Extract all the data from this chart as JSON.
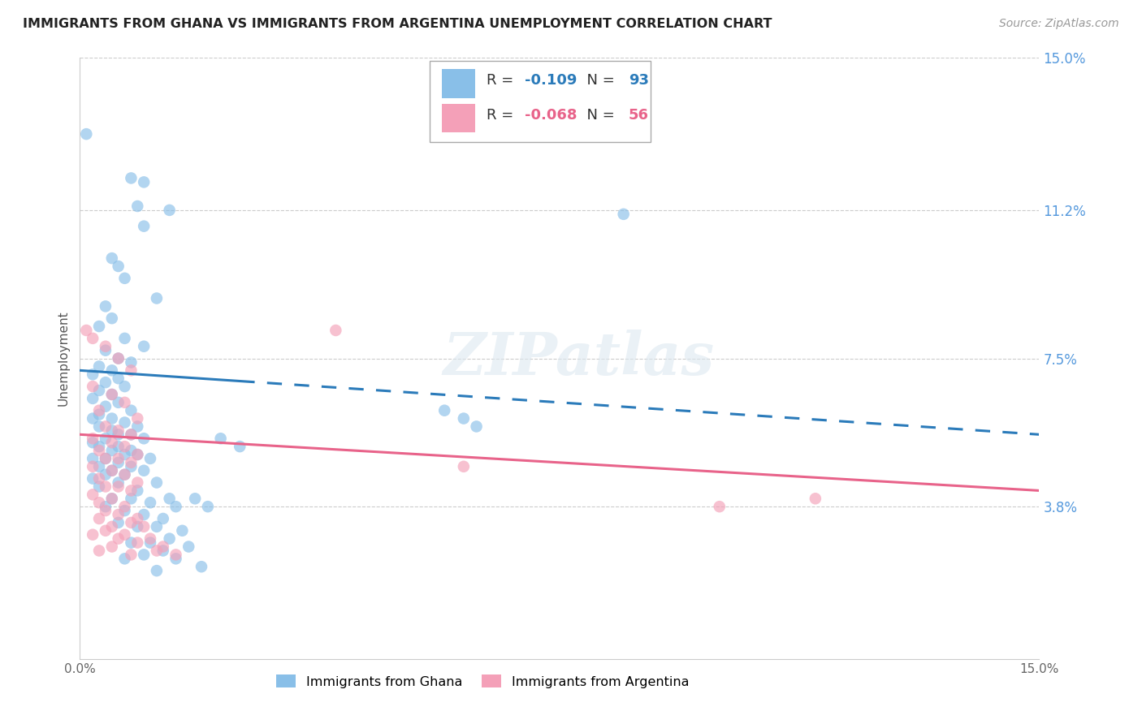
{
  "title": "IMMIGRANTS FROM GHANA VS IMMIGRANTS FROM ARGENTINA UNEMPLOYMENT CORRELATION CHART",
  "source": "Source: ZipAtlas.com",
  "ylabel": "Unemployment",
  "xlim": [
    0.0,
    0.15
  ],
  "ylim": [
    0.0,
    0.15
  ],
  "yticks": [
    0.038,
    0.075,
    0.112,
    0.15
  ],
  "ytick_labels": [
    "3.8%",
    "7.5%",
    "11.2%",
    "15.0%"
  ],
  "ghana_color": "#89bfe8",
  "argentina_color": "#f4a0b8",
  "ghana_R": "-0.109",
  "ghana_N": "93",
  "argentina_R": "-0.068",
  "argentina_N": "56",
  "trend_ghana_color": "#2b7bba",
  "trend_argentina_color": "#e8638a",
  "watermark_text": "ZIPatlas",
  "ghana_points": [
    [
      0.001,
      0.131
    ],
    [
      0.008,
      0.12
    ],
    [
      0.01,
      0.119
    ],
    [
      0.009,
      0.113
    ],
    [
      0.014,
      0.112
    ],
    [
      0.01,
      0.108
    ],
    [
      0.005,
      0.1
    ],
    [
      0.006,
      0.098
    ],
    [
      0.007,
      0.095
    ],
    [
      0.012,
      0.09
    ],
    [
      0.004,
      0.088
    ],
    [
      0.005,
      0.085
    ],
    [
      0.003,
      0.083
    ],
    [
      0.007,
      0.08
    ],
    [
      0.01,
      0.078
    ],
    [
      0.004,
      0.077
    ],
    [
      0.006,
      0.075
    ],
    [
      0.008,
      0.074
    ],
    [
      0.003,
      0.073
    ],
    [
      0.005,
      0.072
    ],
    [
      0.002,
      0.071
    ],
    [
      0.006,
      0.07
    ],
    [
      0.004,
      0.069
    ],
    [
      0.007,
      0.068
    ],
    [
      0.003,
      0.067
    ],
    [
      0.005,
      0.066
    ],
    [
      0.002,
      0.065
    ],
    [
      0.006,
      0.064
    ],
    [
      0.004,
      0.063
    ],
    [
      0.008,
      0.062
    ],
    [
      0.003,
      0.061
    ],
    [
      0.005,
      0.06
    ],
    [
      0.002,
      0.06
    ],
    [
      0.007,
      0.059
    ],
    [
      0.009,
      0.058
    ],
    [
      0.003,
      0.058
    ],
    [
      0.005,
      0.057
    ],
    [
      0.006,
      0.056
    ],
    [
      0.008,
      0.056
    ],
    [
      0.004,
      0.055
    ],
    [
      0.01,
      0.055
    ],
    [
      0.002,
      0.054
    ],
    [
      0.006,
      0.053
    ],
    [
      0.003,
      0.053
    ],
    [
      0.008,
      0.052
    ],
    [
      0.005,
      0.052
    ],
    [
      0.007,
      0.051
    ],
    [
      0.009,
      0.051
    ],
    [
      0.004,
      0.05
    ],
    [
      0.002,
      0.05
    ],
    [
      0.011,
      0.05
    ],
    [
      0.006,
      0.049
    ],
    [
      0.003,
      0.048
    ],
    [
      0.008,
      0.048
    ],
    [
      0.005,
      0.047
    ],
    [
      0.01,
      0.047
    ],
    [
      0.004,
      0.046
    ],
    [
      0.007,
      0.046
    ],
    [
      0.002,
      0.045
    ],
    [
      0.012,
      0.044
    ],
    [
      0.006,
      0.044
    ],
    [
      0.003,
      0.043
    ],
    [
      0.009,
      0.042
    ],
    [
      0.014,
      0.04
    ],
    [
      0.005,
      0.04
    ],
    [
      0.008,
      0.04
    ],
    [
      0.011,
      0.039
    ],
    [
      0.015,
      0.038
    ],
    [
      0.004,
      0.038
    ],
    [
      0.007,
      0.037
    ],
    [
      0.01,
      0.036
    ],
    [
      0.013,
      0.035
    ],
    [
      0.006,
      0.034
    ],
    [
      0.012,
      0.033
    ],
    [
      0.009,
      0.033
    ],
    [
      0.016,
      0.032
    ],
    [
      0.014,
      0.03
    ],
    [
      0.011,
      0.029
    ],
    [
      0.008,
      0.029
    ],
    [
      0.017,
      0.028
    ],
    [
      0.013,
      0.027
    ],
    [
      0.01,
      0.026
    ],
    [
      0.015,
      0.025
    ],
    [
      0.007,
      0.025
    ],
    [
      0.019,
      0.023
    ],
    [
      0.012,
      0.022
    ],
    [
      0.057,
      0.062
    ],
    [
      0.06,
      0.06
    ],
    [
      0.062,
      0.058
    ],
    [
      0.085,
      0.111
    ],
    [
      0.018,
      0.04
    ],
    [
      0.02,
      0.038
    ],
    [
      0.022,
      0.055
    ],
    [
      0.025,
      0.053
    ]
  ],
  "argentina_points": [
    [
      0.001,
      0.082
    ],
    [
      0.002,
      0.08
    ],
    [
      0.004,
      0.078
    ],
    [
      0.006,
      0.075
    ],
    [
      0.008,
      0.072
    ],
    [
      0.04,
      0.082
    ],
    [
      0.002,
      0.068
    ],
    [
      0.005,
      0.066
    ],
    [
      0.007,
      0.064
    ],
    [
      0.003,
      0.062
    ],
    [
      0.009,
      0.06
    ],
    [
      0.004,
      0.058
    ],
    [
      0.006,
      0.057
    ],
    [
      0.008,
      0.056
    ],
    [
      0.002,
      0.055
    ],
    [
      0.005,
      0.054
    ],
    [
      0.007,
      0.053
    ],
    [
      0.003,
      0.052
    ],
    [
      0.009,
      0.051
    ],
    [
      0.004,
      0.05
    ],
    [
      0.006,
      0.05
    ],
    [
      0.008,
      0.049
    ],
    [
      0.002,
      0.048
    ],
    [
      0.005,
      0.047
    ],
    [
      0.007,
      0.046
    ],
    [
      0.003,
      0.045
    ],
    [
      0.009,
      0.044
    ],
    [
      0.004,
      0.043
    ],
    [
      0.006,
      0.043
    ],
    [
      0.008,
      0.042
    ],
    [
      0.002,
      0.041
    ],
    [
      0.005,
      0.04
    ],
    [
      0.003,
      0.039
    ],
    [
      0.007,
      0.038
    ],
    [
      0.004,
      0.037
    ],
    [
      0.006,
      0.036
    ],
    [
      0.009,
      0.035
    ],
    [
      0.003,
      0.035
    ],
    [
      0.008,
      0.034
    ],
    [
      0.005,
      0.033
    ],
    [
      0.01,
      0.033
    ],
    [
      0.004,
      0.032
    ],
    [
      0.007,
      0.031
    ],
    [
      0.002,
      0.031
    ],
    [
      0.011,
      0.03
    ],
    [
      0.006,
      0.03
    ],
    [
      0.009,
      0.029
    ],
    [
      0.013,
      0.028
    ],
    [
      0.005,
      0.028
    ],
    [
      0.003,
      0.027
    ],
    [
      0.012,
      0.027
    ],
    [
      0.008,
      0.026
    ],
    [
      0.015,
      0.026
    ],
    [
      0.1,
      0.038
    ],
    [
      0.115,
      0.04
    ],
    [
      0.06,
      0.048
    ]
  ],
  "ghana_trend_x_solid_end": 0.025,
  "ghana_trend_x_start": 0.0,
  "ghana_trend_x_end": 0.15,
  "ghana_trend_y_start": 0.072,
  "ghana_trend_y_end": 0.056,
  "argentina_trend_x_start": 0.0,
  "argentina_trend_x_end": 0.15,
  "argentina_trend_y_start": 0.056,
  "argentina_trend_y_end": 0.042
}
